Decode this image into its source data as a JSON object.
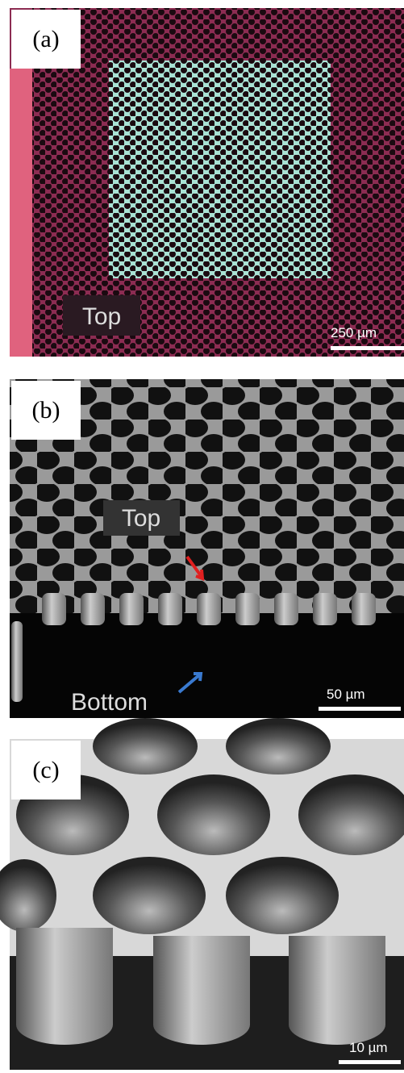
{
  "panels": [
    {
      "label": "(a)",
      "annotations": [
        "Top"
      ],
      "scale_bar": "250 µm"
    },
    {
      "label": "(b)",
      "annotations": [
        "Top",
        "Bottom"
      ],
      "scale_bar": "50 µm"
    },
    {
      "label": "(c)",
      "annotations": [],
      "scale_bar": "10 µm"
    }
  ]
}
